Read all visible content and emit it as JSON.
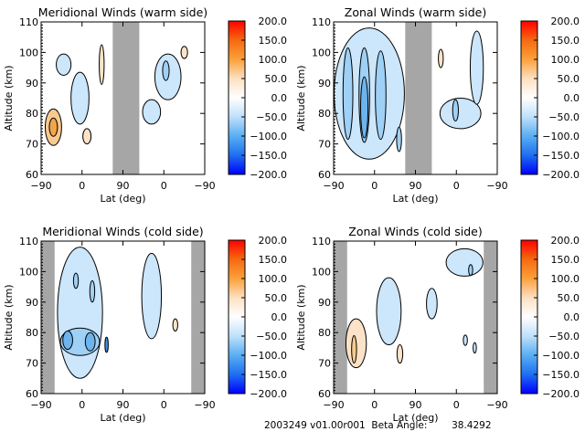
{
  "colors": {
    "gap": "#a6a6a6",
    "neg1": "#cce6fb",
    "neg2": "#9fd0f6",
    "neg3": "#6cb4ef",
    "neg4": "#3a8fe6",
    "pos1": "#fce3c8",
    "pos2": "#f9c98f",
    "pos3": "#f2a54b",
    "colorbar_stops": [
      "#0000ff",
      "#1f6ff0",
      "#59aef3",
      "#bfe0fb",
      "#ffffff",
      "#fde0c2",
      "#fba13a",
      "#f56a10",
      "#ff0000"
    ]
  },
  "chart_data": [
    {
      "type": "heatmap",
      "title": "Meridional Winds (warm side)",
      "xlabel": "Lat (deg)",
      "ylabel": "Altitude (km)",
      "xticks": [
        "-90",
        "0",
        "90",
        "0",
        "-90"
      ],
      "yticks": [
        "60",
        "70",
        "80",
        "90",
        "100",
        "110"
      ],
      "ylim": [
        60,
        110
      ],
      "no_data_band": {
        "from_lat_index": 1.75,
        "to_lat_index": 2.4
      },
      "colorbar": {
        "ticks": [
          "200.0",
          "150.0",
          "100.0",
          "50.0",
          "0.0",
          "-50.0",
          "-100.0",
          "-150.0",
          "-200.0"
        ],
        "range": [
          -200,
          200
        ]
      },
      "features": [
        {
          "sign": "pos",
          "level": 2,
          "x": 0.3,
          "alt": 75.5,
          "rx": 0.2,
          "ry": 6.0
        },
        {
          "sign": "pos",
          "level": 3,
          "x": 0.3,
          "alt": 75.5,
          "rx": 0.1,
          "ry": 3.0
        },
        {
          "sign": "neg",
          "level": 1,
          "x": 0.55,
          "alt": 96.0,
          "rx": 0.18,
          "ry": 3.5
        },
        {
          "sign": "neg",
          "level": 1,
          "x": 0.95,
          "alt": 85.0,
          "rx": 0.22,
          "ry": 8.5
        },
        {
          "sign": "pos",
          "level": 1,
          "x": 1.12,
          "alt": 72.5,
          "rx": 0.1,
          "ry": 2.5
        },
        {
          "sign": "pos",
          "level": 1,
          "x": 1.48,
          "alt": 96.0,
          "rx": 0.06,
          "ry": 6.5
        },
        {
          "sign": "neg",
          "level": 1,
          "x": 2.7,
          "alt": 80.5,
          "rx": 0.22,
          "ry": 4.0
        },
        {
          "sign": "neg",
          "level": 1,
          "x": 3.1,
          "alt": 92.0,
          "rx": 0.32,
          "ry": 7.5
        },
        {
          "sign": "neg",
          "level": 2,
          "x": 3.05,
          "alt": 94.0,
          "rx": 0.08,
          "ry": 3.2
        },
        {
          "sign": "pos",
          "level": 1,
          "x": 3.5,
          "alt": 100.0,
          "rx": 0.08,
          "ry": 2.0
        }
      ]
    },
    {
      "type": "heatmap",
      "title": "Zonal Winds (warm side)",
      "xlabel": "Lat (deg)",
      "ylabel": "Altitude (km)",
      "xticks": [
        "-90",
        "0",
        "90",
        "0",
        "-90"
      ],
      "yticks": [
        "60",
        "70",
        "80",
        "90",
        "100",
        "110"
      ],
      "ylim": [
        60,
        110
      ],
      "no_data_band": {
        "from_lat_index": 1.75,
        "to_lat_index": 2.4
      },
      "colorbar": {
        "ticks": [
          "200.0",
          "150.0",
          "100.0",
          "50.0",
          "0.0",
          "-50.0",
          "-100.0",
          "-150.0",
          "-200.0"
        ],
        "range": [
          -200,
          200
        ]
      },
      "features": [
        {
          "sign": "neg",
          "level": 1,
          "x": 0.87,
          "alt": 86.5,
          "rx": 0.86,
          "ry": 21.5
        },
        {
          "sign": "neg",
          "level": 2,
          "x": 0.35,
          "alt": 86.5,
          "rx": 0.12,
          "ry": 15.0
        },
        {
          "sign": "neg",
          "level": 2,
          "x": 0.75,
          "alt": 86.0,
          "rx": 0.13,
          "ry": 15.5
        },
        {
          "sign": "neg",
          "level": 2,
          "x": 1.15,
          "alt": 86.0,
          "rx": 0.13,
          "ry": 14.5
        },
        {
          "sign": "neg",
          "level": 3,
          "x": 0.75,
          "alt": 82.0,
          "rx": 0.09,
          "ry": 10.0
        },
        {
          "sign": "neg",
          "level": 2,
          "x": 1.6,
          "alt": 71.5,
          "rx": 0.06,
          "ry": 4.0
        },
        {
          "sign": "pos",
          "level": 1,
          "x": 2.62,
          "alt": 98.0,
          "rx": 0.06,
          "ry": 3.0
        },
        {
          "sign": "neg",
          "level": 1,
          "x": 3.1,
          "alt": 80.0,
          "rx": 0.5,
          "ry": 5.0
        },
        {
          "sign": "neg",
          "level": 1,
          "x": 3.5,
          "alt": 95.0,
          "rx": 0.16,
          "ry": 12.0
        },
        {
          "sign": "neg",
          "level": 2,
          "x": 2.98,
          "alt": 81.0,
          "rx": 0.07,
          "ry": 3.5
        }
      ]
    },
    {
      "type": "heatmap",
      "title": "Meridional Winds (cold side)",
      "xlabel": "Lat (deg)",
      "ylabel": "Altitude (km)",
      "xticks": [
        "-90",
        "0",
        "90",
        "0",
        "-90"
      ],
      "yticks": [
        "60",
        "70",
        "80",
        "90",
        "100",
        "110"
      ],
      "ylim": [
        60,
        110
      ],
      "no_data_bands": [
        {
          "from_lat_index": 0.0,
          "to_lat_index": 0.33
        },
        {
          "from_lat_index": 3.67,
          "to_lat_index": 4.0
        }
      ],
      "colorbar": {
        "ticks": [
          "200.0",
          "150.0",
          "100.0",
          "50.0",
          "0.0",
          "-50.0",
          "-100.0",
          "-150.0",
          "-200.0"
        ],
        "range": [
          -200,
          200
        ]
      },
      "features": [
        {
          "sign": "neg",
          "level": 1,
          "x": 0.95,
          "alt": 86.5,
          "rx": 0.55,
          "ry": 21.5
        },
        {
          "sign": "neg",
          "level": 2,
          "x": 0.95,
          "alt": 77.0,
          "rx": 0.48,
          "ry": 4.5
        },
        {
          "sign": "neg",
          "level": 3,
          "x": 0.65,
          "alt": 77.5,
          "rx": 0.12,
          "ry": 3.0
        },
        {
          "sign": "neg",
          "level": 3,
          "x": 1.2,
          "alt": 77.0,
          "rx": 0.12,
          "ry": 3.0
        },
        {
          "sign": "neg",
          "level": 4,
          "x": 1.6,
          "alt": 76.0,
          "rx": 0.04,
          "ry": 2.5
        },
        {
          "sign": "neg",
          "level": 2,
          "x": 1.25,
          "alt": 93.5,
          "rx": 0.06,
          "ry": 3.5
        },
        {
          "sign": "neg",
          "level": 2,
          "x": 0.85,
          "alt": 97.0,
          "rx": 0.06,
          "ry": 2.5
        },
        {
          "sign": "neg",
          "level": 1,
          "x": 2.7,
          "alt": 92.0,
          "rx": 0.24,
          "ry": 14.0
        },
        {
          "sign": "pos",
          "level": 1,
          "x": 3.28,
          "alt": 82.5,
          "rx": 0.06,
          "ry": 2.0
        }
      ]
    },
    {
      "type": "heatmap",
      "title": "Zonal Winds (cold side)",
      "xlabel": "Lat (deg)",
      "ylabel": "Altitude (km)",
      "xticks": [
        "-90",
        "0",
        "90",
        "0",
        "-90"
      ],
      "yticks": [
        "60",
        "70",
        "80",
        "90",
        "100",
        "110"
      ],
      "ylim": [
        60,
        110
      ],
      "no_data_bands": [
        {
          "from_lat_index": 0.0,
          "to_lat_index": 0.33
        },
        {
          "from_lat_index": 3.67,
          "to_lat_index": 4.0
        }
      ],
      "colorbar": {
        "ticks": [
          "200.0",
          "150.0",
          "100.0",
          "50.0",
          "0.0",
          "-50.0",
          "-100.0",
          "-150.0",
          "-200.0"
        ],
        "range": [
          -200,
          200
        ]
      },
      "features": [
        {
          "sign": "pos",
          "level": 1,
          "x": 0.55,
          "alt": 76.5,
          "rx": 0.25,
          "ry": 8.0
        },
        {
          "sign": "pos",
          "level": 2,
          "x": 0.5,
          "alt": 74.5,
          "rx": 0.06,
          "ry": 4.5
        },
        {
          "sign": "neg",
          "level": 1,
          "x": 1.35,
          "alt": 87.0,
          "rx": 0.3,
          "ry": 11.0
        },
        {
          "sign": "pos",
          "level": 1,
          "x": 1.62,
          "alt": 73.0,
          "rx": 0.07,
          "ry": 3.0
        },
        {
          "sign": "neg",
          "level": 1,
          "x": 3.2,
          "alt": 103.0,
          "rx": 0.45,
          "ry": 4.5
        },
        {
          "sign": "neg",
          "level": 2,
          "x": 3.35,
          "alt": 100.5,
          "rx": 0.05,
          "ry": 1.8
        },
        {
          "sign": "neg",
          "level": 1,
          "x": 2.4,
          "alt": 89.5,
          "rx": 0.13,
          "ry": 5.0
        },
        {
          "sign": "neg",
          "level": 1,
          "x": 3.22,
          "alt": 77.5,
          "rx": 0.05,
          "ry": 1.7
        },
        {
          "sign": "neg",
          "level": 1,
          "x": 3.45,
          "alt": 75.0,
          "rx": 0.04,
          "ry": 1.7
        }
      ]
    }
  ],
  "footer": {
    "date_version": "2003249 v01.00r001",
    "beta_label": "Beta Angle:",
    "beta_value": "38.4292"
  }
}
